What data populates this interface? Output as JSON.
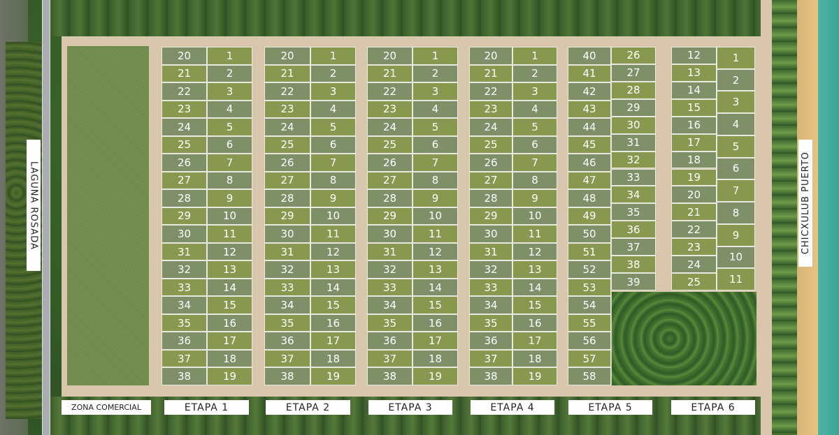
{
  "labels": {
    "laguna": "LAGUNA ROSADA",
    "chicxulub": "CHICXULUB PUERTO",
    "zona_comercial": "ZONA COMERCIAL"
  },
  "colors": {
    "lot_a": "#88994f",
    "lot_b": "#7f9068",
    "road": "#d8c7ad",
    "sea": "#3aa596"
  },
  "stages": [
    {
      "name": "ETAPA 1",
      "columns": [
        [
          20,
          21,
          22,
          23,
          24,
          25,
          26,
          27,
          28,
          29,
          30,
          31,
          32,
          33,
          34,
          35,
          36,
          37,
          38
        ],
        [
          1,
          2,
          3,
          4,
          5,
          6,
          7,
          8,
          9,
          10,
          11,
          12,
          13,
          14,
          15,
          16,
          17,
          18,
          19
        ]
      ]
    },
    {
      "name": "ETAPA 2",
      "columns": [
        [
          20,
          21,
          22,
          23,
          24,
          25,
          26,
          27,
          28,
          29,
          30,
          31,
          32,
          33,
          34,
          35,
          36,
          37,
          38
        ],
        [
          1,
          2,
          3,
          4,
          5,
          6,
          7,
          8,
          9,
          10,
          11,
          12,
          13,
          14,
          15,
          16,
          17,
          18,
          19
        ]
      ]
    },
    {
      "name": "ETAPA 3",
      "columns": [
        [
          20,
          21,
          22,
          23,
          24,
          25,
          26,
          27,
          28,
          29,
          30,
          31,
          32,
          33,
          34,
          35,
          36,
          37,
          38
        ],
        [
          1,
          2,
          3,
          4,
          5,
          6,
          7,
          8,
          9,
          10,
          11,
          12,
          13,
          14,
          15,
          16,
          17,
          18,
          19
        ]
      ]
    },
    {
      "name": "ETAPA 4",
      "columns": [
        [
          20,
          21,
          22,
          23,
          24,
          25,
          26,
          27,
          28,
          29,
          30,
          31,
          32,
          33,
          34,
          35,
          36,
          37,
          38
        ],
        [
          1,
          2,
          3,
          4,
          5,
          6,
          7,
          8,
          9,
          10,
          11,
          12,
          13,
          14,
          15,
          16,
          17,
          18,
          19
        ]
      ]
    },
    {
      "name": "ETAPA 5",
      "columns": [
        [
          40,
          41,
          42,
          43,
          44,
          45,
          46,
          47,
          48,
          49,
          50,
          51,
          52,
          53,
          54,
          55,
          56,
          57,
          58
        ],
        [
          26,
          27,
          28,
          29,
          30,
          31,
          32,
          33,
          34,
          35,
          36,
          37,
          38,
          39
        ]
      ]
    },
    {
      "name": "ETAPA 6",
      "columns": [
        [
          12,
          13,
          14,
          15,
          16,
          17,
          18,
          19,
          20,
          21,
          22,
          23,
          24,
          25
        ],
        [
          1,
          2,
          3,
          4,
          5,
          6,
          7,
          8,
          9,
          10,
          11
        ]
      ]
    }
  ]
}
